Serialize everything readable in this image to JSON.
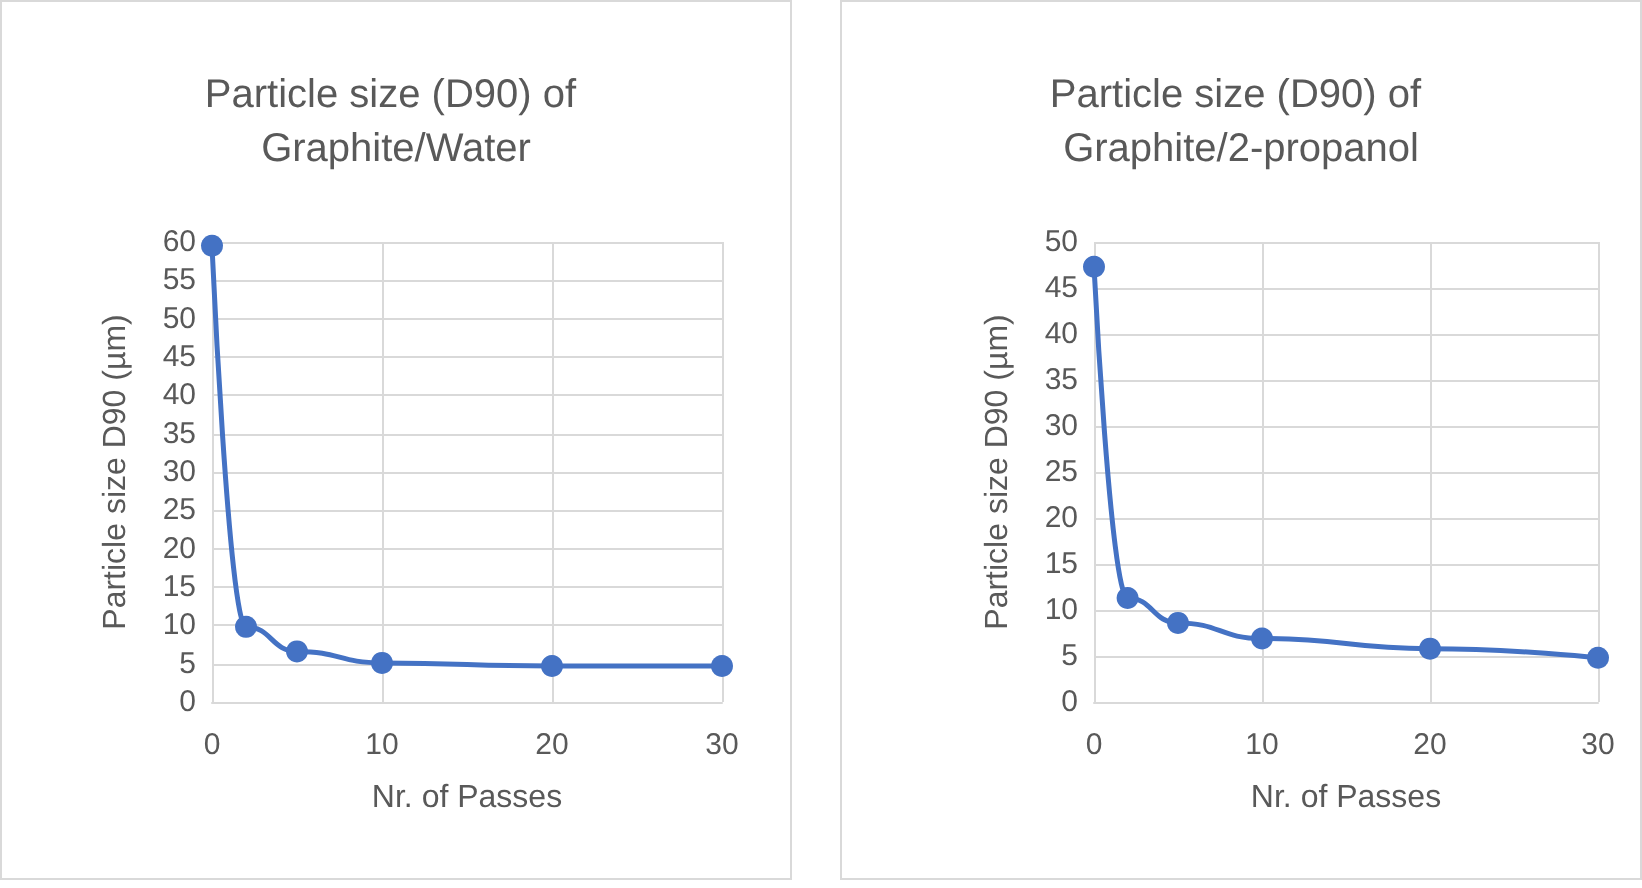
{
  "chart_data": [
    {
      "type": "line",
      "title": "Particle size (D90) of Graphite/Water",
      "xlabel": "Nr. of Passes",
      "ylabel": "Particle size D90 (µm)",
      "x": [
        0,
        2,
        5,
        10,
        20,
        30
      ],
      "series": [
        {
          "color": "#4472c4",
          "values": [
            59.5,
            9.8,
            6.6,
            5.1,
            4.7,
            4.7
          ]
        }
      ],
      "xlim": [
        0,
        30
      ],
      "xticks": [
        0,
        10,
        20,
        30
      ],
      "ylim": [
        0,
        60
      ],
      "yticks": [
        0,
        5,
        10,
        15,
        20,
        25,
        30,
        35,
        40,
        45,
        50,
        55,
        60
      ],
      "grid": true,
      "marker": "circle",
      "line_style": "solid"
    },
    {
      "type": "line",
      "title": "Particle size (D90) of Graphite/2-propanol",
      "xlabel": "Nr. of Passes",
      "ylabel": "Particle size D90 (µm)",
      "x": [
        0,
        2,
        5,
        10,
        20,
        30
      ],
      "series": [
        {
          "color": "#4472c4",
          "values": [
            47.3,
            11.3,
            8.6,
            6.9,
            5.8,
            4.8
          ]
        }
      ],
      "xlim": [
        0,
        30
      ],
      "xticks": [
        0,
        10,
        20,
        30
      ],
      "ylim": [
        0,
        50
      ],
      "yticks": [
        0,
        5,
        10,
        15,
        20,
        25,
        30,
        35,
        40,
        45,
        50
      ],
      "grid": true,
      "marker": "circle",
      "line_style": "solid"
    }
  ]
}
